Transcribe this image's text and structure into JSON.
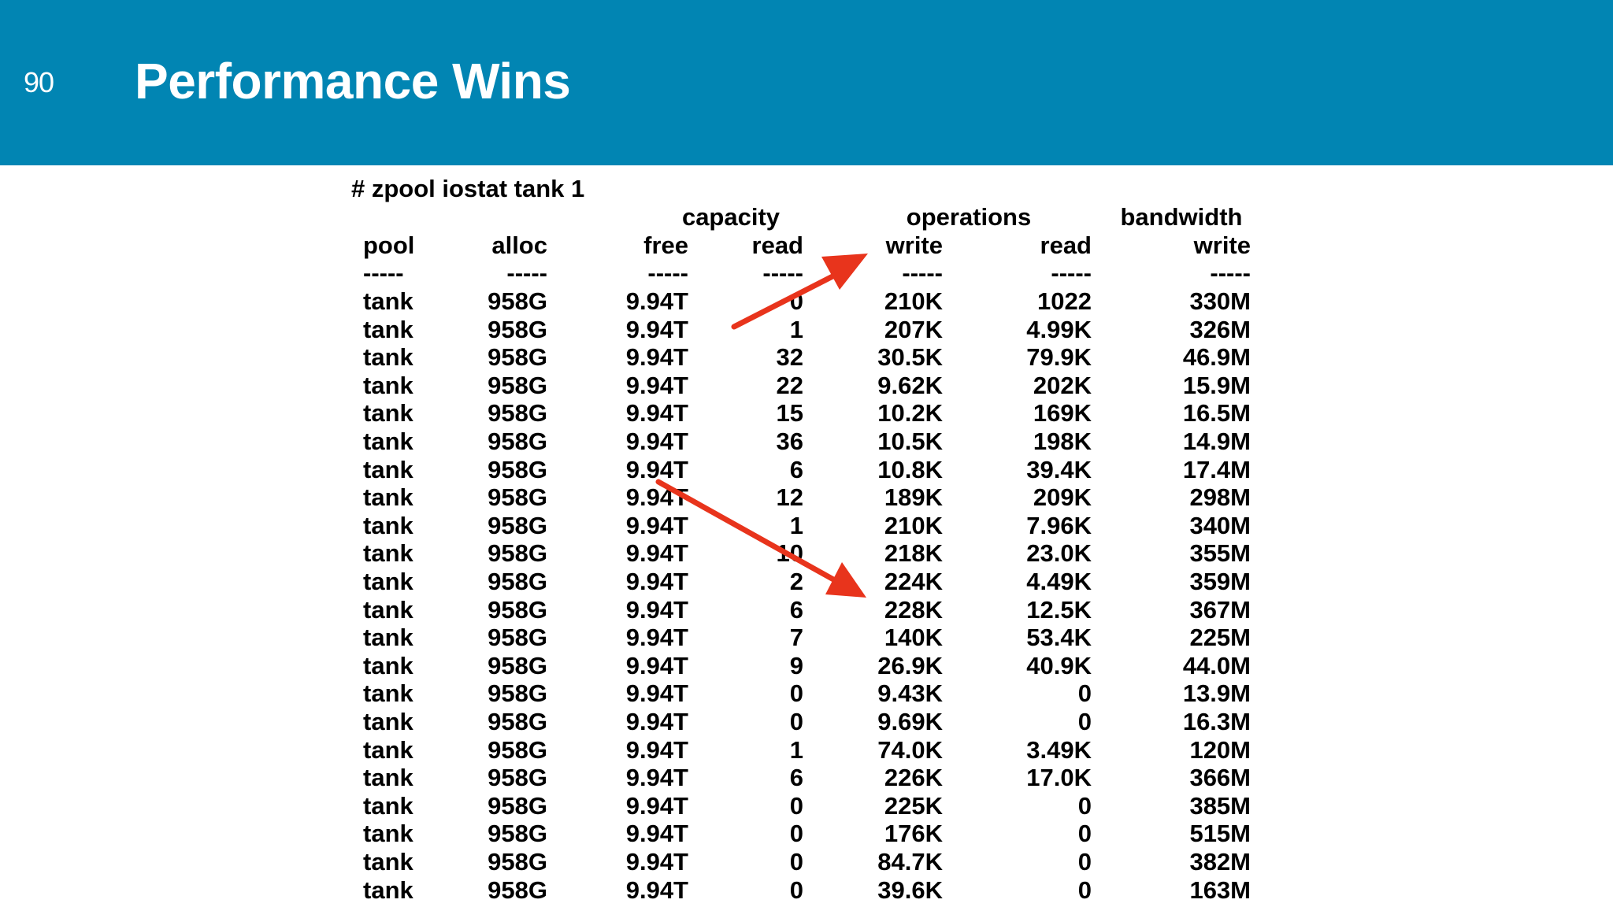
{
  "slide": {
    "number": "90",
    "title": "Performance Wins"
  },
  "colors": {
    "header_bg": "#0185b3",
    "arrow": "#e8341c"
  },
  "terminal": {
    "command": "# zpool iostat tank 1",
    "groups": [
      "capacity",
      "operations",
      "bandwidth"
    ],
    "columns": [
      "pool",
      "alloc",
      "free",
      "read",
      "write",
      "read",
      "write"
    ],
    "separator": "-----",
    "rows": [
      [
        "tank",
        "958G",
        "9.94T",
        "0",
        "210K",
        "1022",
        "330M"
      ],
      [
        "tank",
        "958G",
        "9.94T",
        "1",
        "207K",
        "4.99K",
        "326M"
      ],
      [
        "tank",
        "958G",
        "9.94T",
        "32",
        "30.5K",
        "79.9K",
        "46.9M"
      ],
      [
        "tank",
        "958G",
        "9.94T",
        "22",
        "9.62K",
        "202K",
        "15.9M"
      ],
      [
        "tank",
        "958G",
        "9.94T",
        "15",
        "10.2K",
        "169K",
        "16.5M"
      ],
      [
        "tank",
        "958G",
        "9.94T",
        "36",
        "10.5K",
        "198K",
        "14.9M"
      ],
      [
        "tank",
        "958G",
        "9.94T",
        "6",
        "10.8K",
        "39.4K",
        "17.4M"
      ],
      [
        "tank",
        "958G",
        "9.94T",
        "12",
        "189K",
        "209K",
        "298M"
      ],
      [
        "tank",
        "958G",
        "9.94T",
        "1",
        "210K",
        "7.96K",
        "340M"
      ],
      [
        "tank",
        "958G",
        "9.94T",
        "10",
        "218K",
        "23.0K",
        "355M"
      ],
      [
        "tank",
        "958G",
        "9.94T",
        "2",
        "224K",
        "4.49K",
        "359M"
      ],
      [
        "tank",
        "958G",
        "9.94T",
        "6",
        "228K",
        "12.5K",
        "367M"
      ],
      [
        "tank",
        "958G",
        "9.94T",
        "7",
        "140K",
        "53.4K",
        "225M"
      ],
      [
        "tank",
        "958G",
        "9.94T",
        "9",
        "26.9K",
        "40.9K",
        "44.0M"
      ],
      [
        "tank",
        "958G",
        "9.94T",
        "0",
        "9.43K",
        "0",
        "13.9M"
      ],
      [
        "tank",
        "958G",
        "9.94T",
        "0",
        "9.69K",
        "0",
        "16.3M"
      ],
      [
        "tank",
        "958G",
        "9.94T",
        "1",
        "74.0K",
        "3.49K",
        "120M"
      ],
      [
        "tank",
        "958G",
        "9.94T",
        "6",
        "226K",
        "17.0K",
        "366M"
      ],
      [
        "tank",
        "958G",
        "9.94T",
        "0",
        "225K",
        "0",
        "385M"
      ],
      [
        "tank",
        "958G",
        "9.94T",
        "0",
        "176K",
        "0",
        "515M"
      ],
      [
        "tank",
        "958G",
        "9.94T",
        "0",
        "84.7K",
        "0",
        "382M"
      ],
      [
        "tank",
        "958G",
        "9.94T",
        "0",
        "39.6K",
        "0",
        "163M"
      ]
    ]
  },
  "annotations": [
    "arrow-up-right",
    "arrow-down-right"
  ]
}
